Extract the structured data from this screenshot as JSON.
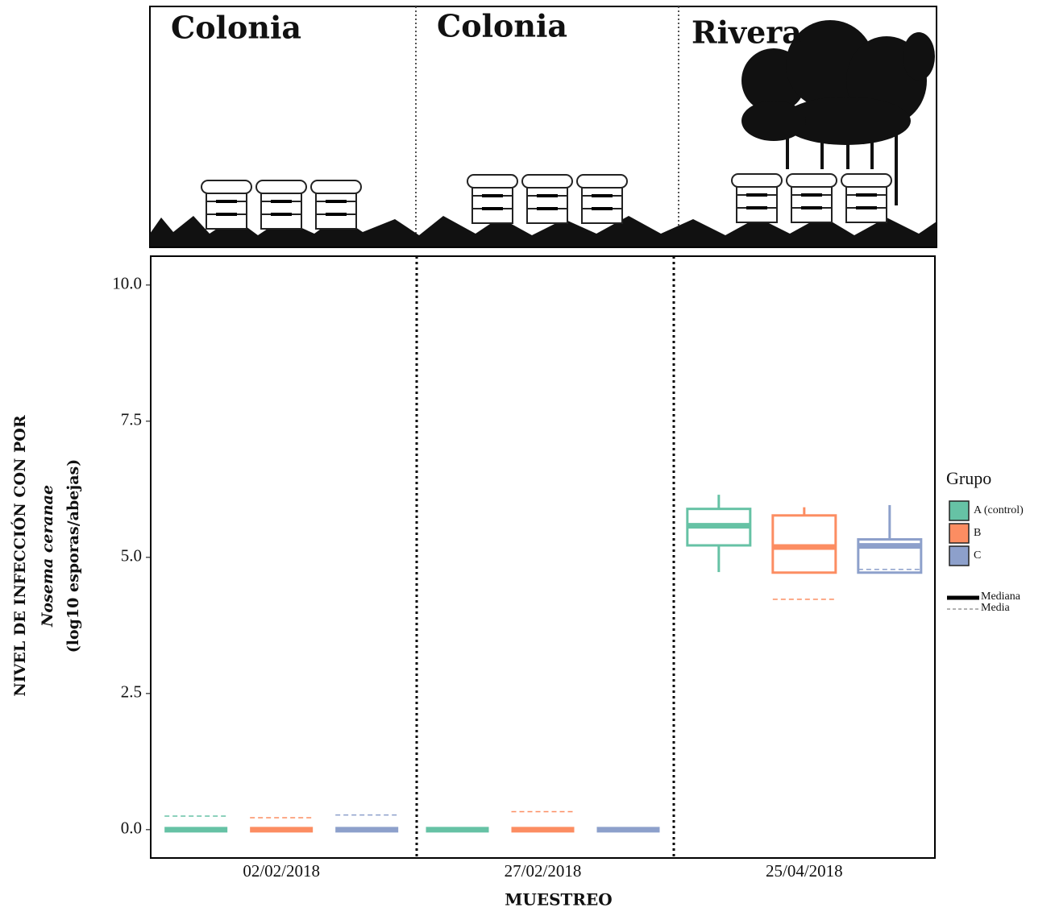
{
  "chart_data": {
    "type": "box",
    "panel_labels": [
      "Colonia",
      "Colonia",
      "Rivera"
    ],
    "y_label": [
      "NIVEL DE INFECCIÓN CON POR",
      "Nosema ceranae",
      "(log10 esporas/abejas)"
    ],
    "x_label": "MUESTREO",
    "categories": [
      "02/02/2018",
      "27/02/2018",
      "25/04/2018"
    ],
    "ylim": [
      -0.52,
      10.53
    ],
    "yticks": [
      {
        "value": 0,
        "label": "0.0"
      },
      {
        "value": 2.5,
        "label": "2.5"
      },
      {
        "value": 5,
        "label": "5.0"
      },
      {
        "value": 7.5,
        "label": "7.5"
      },
      {
        "value": 10,
        "label": "10.0"
      }
    ],
    "legend_title": "Grupo",
    "legend_lines": [
      "Mediana",
      "Media"
    ],
    "series": [
      {
        "name": "A (control)",
        "color": "#66c2a5",
        "whislo": [
          0,
          0,
          4.73
        ],
        "q1": [
          0,
          0,
          5.22
        ],
        "med": [
          0,
          0,
          5.58
        ],
        "q3": [
          0,
          0,
          5.89
        ],
        "whishi": [
          0,
          0,
          6.15
        ],
        "mean": [
          0.25,
          0,
          5.55
        ]
      },
      {
        "name": "B",
        "color": "#fc8d62",
        "whislo": [
          0,
          0,
          4.72
        ],
        "q1": [
          0,
          0,
          4.72
        ],
        "med": [
          0,
          0,
          5.19
        ],
        "q3": [
          0,
          0,
          5.77
        ],
        "whishi": [
          0,
          0,
          5.92
        ],
        "mean": [
          0.22,
          0.33,
          4.23
        ]
      },
      {
        "name": "C",
        "color": "#8da0cb",
        "whislo": [
          0,
          0,
          4.72
        ],
        "q1": [
          0,
          0,
          4.72
        ],
        "med": [
          0,
          0,
          5.21
        ],
        "q3": [
          0,
          0,
          5.33
        ],
        "whishi": [
          0,
          0,
          5.96
        ],
        "mean": [
          0.27,
          0,
          4.78
        ]
      }
    ]
  }
}
